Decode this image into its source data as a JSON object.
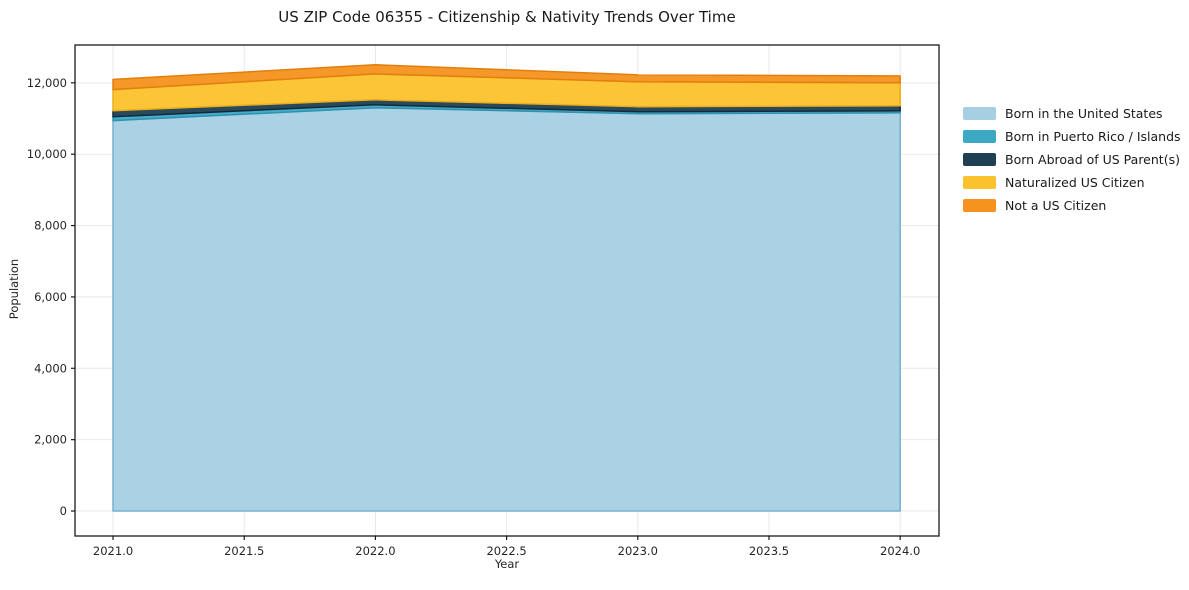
{
  "chart_data": {
    "type": "area",
    "stacked": true,
    "title": "US ZIP Code 06355 - Citizenship & Nativity Trends Over Time",
    "xlabel": "Year",
    "ylabel": "Population",
    "x": [
      2021,
      2022,
      2023,
      2024
    ],
    "x_ticks": [
      2021.0,
      2021.5,
      2022.0,
      2022.5,
      2023.0,
      2023.5,
      2024.0
    ],
    "x_tick_labels": [
      "2021.0",
      "2021.5",
      "2022.0",
      "2022.5",
      "2023.0",
      "2023.5",
      "2024.0"
    ],
    "y_ticks": [
      0,
      2000,
      4000,
      6000,
      8000,
      10000,
      12000
    ],
    "y_tick_labels": [
      "0",
      "2,000",
      "4,000",
      "6,000",
      "8,000",
      "10,000",
      "12,000"
    ],
    "xlim": [
      2020.855,
      2024.148
    ],
    "ylim": [
      -700,
      13060
    ],
    "grid": true,
    "legend_position": "right-outside",
    "series": [
      {
        "id": "born-in-us",
        "name": "Born in the United States",
        "color": "#a7cfe4",
        "edge": "#77b0cf",
        "values": [
          10940,
          11300,
          11135,
          11160
        ]
      },
      {
        "id": "puerto-rico-islands",
        "name": "Born in Puerto Rico / Islands",
        "color": "#3da8c4",
        "edge": "#2d93af",
        "values": [
          110,
          85,
          55,
          55
        ]
      },
      {
        "id": "born-abroad",
        "name": "Born Abroad of US Parent(s)",
        "color": "#1e3f54",
        "edge": "#132c3b",
        "values": [
          170,
          140,
          140,
          140
        ]
      },
      {
        "id": "naturalized",
        "name": "Naturalized US Citizen",
        "color": "#fcc22d",
        "edge": "#ecaf1b",
        "values": [
          590,
          725,
          700,
          645
        ]
      },
      {
        "id": "not-citizen",
        "name": "Not a US Citizen",
        "color": "#f6921e",
        "edge": "#e27f0c",
        "values": [
          285,
          255,
          195,
          195
        ]
      }
    ],
    "totals": [
      12095,
      12505,
      12225,
      12195
    ],
    "style": {
      "grid_color": "#e9e9e9",
      "spine_color": "#1a1a1a",
      "text_color": "#262626",
      "background": "#ffffff"
    }
  }
}
